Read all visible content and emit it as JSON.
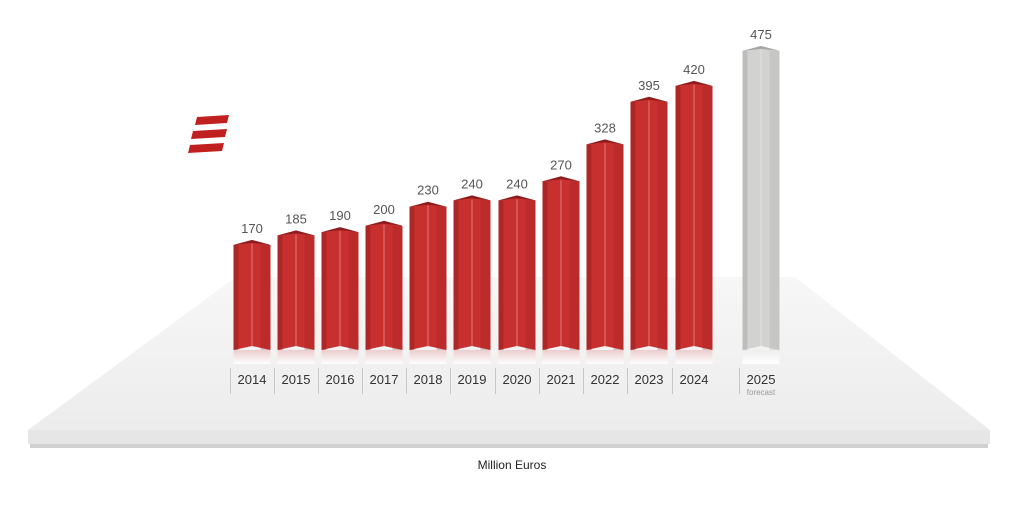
{
  "chart_data": {
    "type": "bar",
    "categories": [
      "2014",
      "2015",
      "2016",
      "2017",
      "2018",
      "2019",
      "2020",
      "2021",
      "2022",
      "2023",
      "2024",
      "2025"
    ],
    "values": [
      170,
      185,
      190,
      200,
      230,
      240,
      240,
      270,
      328,
      395,
      420,
      475
    ],
    "value_labels": [
      "170",
      "185",
      "190",
      "200",
      "230",
      "240",
      "240",
      "270",
      "328",
      "395",
      "420",
      "475"
    ],
    "forecast_category": "2025",
    "forecast_note": "forecast",
    "ylabel": "Million Euros",
    "grid": false,
    "colors": {
      "actual": "#c8302f",
      "actual_dark": "#8e1c1c",
      "forecast": "#d2d2d0",
      "forecast_dark": "#a5a5a3",
      "logo": "#c0201f"
    }
  },
  "logo": {
    "icon": "company-logo-icon"
  }
}
